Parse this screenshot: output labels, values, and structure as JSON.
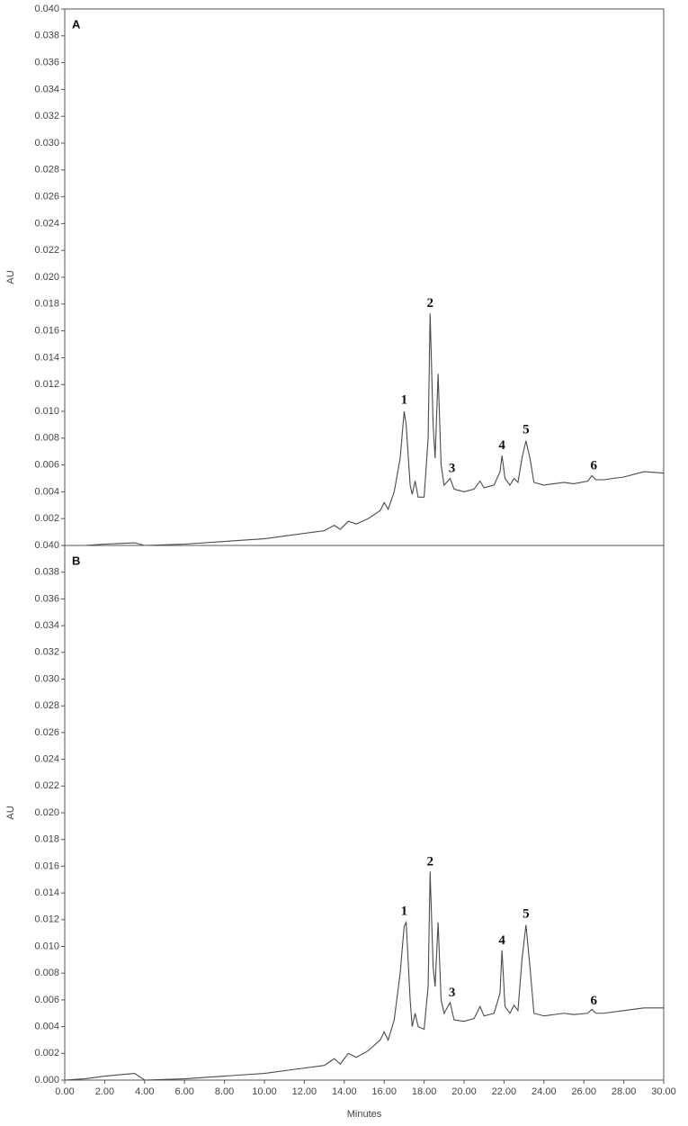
{
  "chart_data": [
    {
      "type": "line",
      "panel_label": "A",
      "y_label": "AU",
      "xlim": [
        0,
        30
      ],
      "ylim": [
        0,
        0.04
      ],
      "yticks": [
        {
          "value": 0.002,
          "label": "0.002"
        },
        {
          "value": 0.004,
          "label": "0.004"
        },
        {
          "value": 0.006,
          "label": "0.006"
        },
        {
          "value": 0.008,
          "label": "0.008"
        },
        {
          "value": 0.01,
          "label": "0.010"
        },
        {
          "value": 0.012,
          "label": "0.012"
        },
        {
          "value": 0.014,
          "label": "0.014"
        },
        {
          "value": 0.016,
          "label": "0.016"
        },
        {
          "value": 0.018,
          "label": "0.018"
        },
        {
          "value": 0.02,
          "label": "0.020"
        },
        {
          "value": 0.022,
          "label": "0.022"
        },
        {
          "value": 0.024,
          "label": "0.024"
        },
        {
          "value": 0.026,
          "label": "0.026"
        },
        {
          "value": 0.028,
          "label": "0.028"
        },
        {
          "value": 0.03,
          "label": "0.030"
        },
        {
          "value": 0.032,
          "label": "0.032"
        },
        {
          "value": 0.034,
          "label": "0.034"
        },
        {
          "value": 0.036,
          "label": "0.036"
        },
        {
          "value": 0.038,
          "label": "0.038"
        },
        {
          "value": 0.04,
          "label": "0.040"
        }
      ],
      "x": [
        0,
        1,
        2,
        3.5,
        4,
        6,
        8,
        10,
        12,
        13,
        13.5,
        13.8,
        14.2,
        14.6,
        15.2,
        15.8,
        16.0,
        16.2,
        16.5,
        16.8,
        17.0,
        17.1,
        17.3,
        17.4,
        17.55,
        17.7,
        18.0,
        18.2,
        18.3,
        18.45,
        18.55,
        18.7,
        18.85,
        19.0,
        19.3,
        19.5,
        20.0,
        20.5,
        20.8,
        21.0,
        21.5,
        21.8,
        21.9,
        22.05,
        22.3,
        22.5,
        22.7,
        22.9,
        23.1,
        23.3,
        23.5,
        24,
        25,
        25.5,
        26.2,
        26.4,
        26.6,
        27,
        28,
        29,
        30
      ],
      "series": [
        {
          "color": "#4a4a4a",
          "values": [
            0,
            0,
            0.0001,
            0.0002,
            0,
            0.0001,
            0.0003,
            0.0005,
            0.0009,
            0.0011,
            0.0015,
            0.0012,
            0.0018,
            0.0016,
            0.002,
            0.0026,
            0.0032,
            0.0027,
            0.004,
            0.0065,
            0.01,
            0.009,
            0.0045,
            0.0038,
            0.0048,
            0.0036,
            0.0036,
            0.008,
            0.0173,
            0.009,
            0.0065,
            0.0128,
            0.006,
            0.0045,
            0.005,
            0.0042,
            0.004,
            0.0042,
            0.0048,
            0.0043,
            0.0045,
            0.0055,
            0.0067,
            0.005,
            0.0045,
            0.005,
            0.0047,
            0.0065,
            0.0078,
            0.0065,
            0.0047,
            0.0045,
            0.0047,
            0.0046,
            0.0048,
            0.0052,
            0.0049,
            0.0049,
            0.0051,
            0.0055,
            0.0054
          ]
        }
      ],
      "annotations": [
        {
          "text": "1",
          "x": 17.0,
          "y": 0.0108
        },
        {
          "text": "2",
          "x": 18.3,
          "y": 0.018
        },
        {
          "text": "3",
          "x": 19.4,
          "y": 0.0057
        },
        {
          "text": "4",
          "x": 21.9,
          "y": 0.0074
        },
        {
          "text": "5",
          "x": 23.1,
          "y": 0.0086
        },
        {
          "text": "6",
          "x": 26.5,
          "y": 0.0059
        }
      ]
    },
    {
      "type": "line",
      "panel_label": "B",
      "y_label": "AU",
      "x_label": "Minutes",
      "xlim": [
        0,
        30
      ],
      "ylim": [
        0,
        0.04
      ],
      "xticks": [
        {
          "value": 0,
          "label": "0.00"
        },
        {
          "value": 2,
          "label": "2.00"
        },
        {
          "value": 4,
          "label": "4.00"
        },
        {
          "value": 6,
          "label": "6.00"
        },
        {
          "value": 8,
          "label": "8.00"
        },
        {
          "value": 10,
          "label": "10.00"
        },
        {
          "value": 12,
          "label": "12.00"
        },
        {
          "value": 14,
          "label": "14.00"
        },
        {
          "value": 16,
          "label": "16.00"
        },
        {
          "value": 18,
          "label": "18.00"
        },
        {
          "value": 20,
          "label": "20.00"
        },
        {
          "value": 22,
          "label": "22.00"
        },
        {
          "value": 24,
          "label": "24.00"
        },
        {
          "value": 26,
          "label": "26.00"
        },
        {
          "value": 28,
          "label": "28.00"
        },
        {
          "value": 30,
          "label": "30.00"
        }
      ],
      "yticks": [
        {
          "value": 0,
          "label": "0.000"
        },
        {
          "value": 0.002,
          "label": "0.002"
        },
        {
          "value": 0.004,
          "label": "0.004"
        },
        {
          "value": 0.006,
          "label": "0.006"
        },
        {
          "value": 0.008,
          "label": "0.008"
        },
        {
          "value": 0.01,
          "label": "0.010"
        },
        {
          "value": 0.012,
          "label": "0.012"
        },
        {
          "value": 0.014,
          "label": "0.014"
        },
        {
          "value": 0.016,
          "label": "0.016"
        },
        {
          "value": 0.018,
          "label": "0.018"
        },
        {
          "value": 0.02,
          "label": "0.020"
        },
        {
          "value": 0.022,
          "label": "0.022"
        },
        {
          "value": 0.024,
          "label": "0.024"
        },
        {
          "value": 0.026,
          "label": "0.026"
        },
        {
          "value": 0.028,
          "label": "0.028"
        },
        {
          "value": 0.03,
          "label": "0.030"
        },
        {
          "value": 0.032,
          "label": "0.032"
        },
        {
          "value": 0.034,
          "label": "0.034"
        },
        {
          "value": 0.036,
          "label": "0.036"
        },
        {
          "value": 0.038,
          "label": "0.038"
        },
        {
          "value": 0.04,
          "label": "0.040"
        }
      ],
      "x": [
        0,
        1,
        2,
        3.5,
        4,
        6,
        8,
        10,
        12,
        13,
        13.5,
        13.8,
        14.2,
        14.6,
        15.2,
        15.8,
        16.0,
        16.2,
        16.5,
        16.8,
        17.0,
        17.1,
        17.3,
        17.4,
        17.55,
        17.7,
        18.0,
        18.2,
        18.3,
        18.45,
        18.55,
        18.7,
        18.85,
        19.0,
        19.3,
        19.5,
        20.0,
        20.5,
        20.8,
        21.0,
        21.5,
        21.8,
        21.9,
        22.05,
        22.3,
        22.5,
        22.7,
        22.9,
        23.1,
        23.3,
        23.5,
        24,
        25,
        25.5,
        26.2,
        26.4,
        26.6,
        27,
        28,
        29,
        30
      ],
      "series": [
        {
          "color": "#4a4a4a",
          "values": [
            0,
            0.0001,
            0.0003,
            0.0005,
            0,
            0.0001,
            0.0003,
            0.0005,
            0.0009,
            0.0011,
            0.0016,
            0.0012,
            0.002,
            0.0017,
            0.0022,
            0.003,
            0.0036,
            0.003,
            0.0045,
            0.008,
            0.0115,
            0.0118,
            0.006,
            0.004,
            0.005,
            0.004,
            0.0038,
            0.007,
            0.0156,
            0.0085,
            0.007,
            0.0118,
            0.006,
            0.005,
            0.0058,
            0.0045,
            0.0044,
            0.0046,
            0.0055,
            0.0048,
            0.005,
            0.0065,
            0.0097,
            0.0055,
            0.005,
            0.0056,
            0.0052,
            0.009,
            0.0116,
            0.0085,
            0.005,
            0.0048,
            0.005,
            0.0049,
            0.005,
            0.0053,
            0.005,
            0.005,
            0.0052,
            0.0054,
            0.0054
          ]
        }
      ],
      "annotations": [
        {
          "text": "1",
          "x": 17.0,
          "y": 0.0126
        },
        {
          "text": "2",
          "x": 18.3,
          "y": 0.0163
        },
        {
          "text": "3",
          "x": 19.4,
          "y": 0.0065
        },
        {
          "text": "4",
          "x": 21.9,
          "y": 0.0104
        },
        {
          "text": "5",
          "x": 23.1,
          "y": 0.0124
        },
        {
          "text": "6",
          "x": 26.5,
          "y": 0.0059
        }
      ]
    }
  ]
}
